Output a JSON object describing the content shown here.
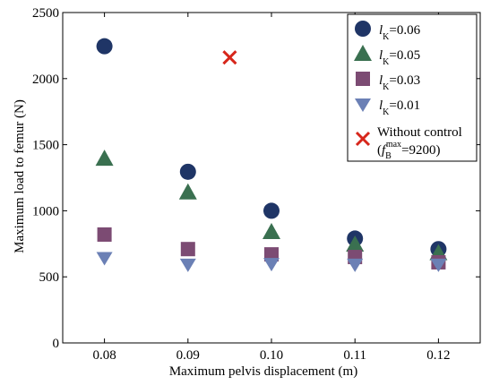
{
  "chart_data": {
    "type": "scatter",
    "title": "",
    "xlabel": "Maximum pelvis displacement (m)",
    "ylabel": "Maximum load to femur (N)",
    "xlim": [
      0.075,
      0.125
    ],
    "ylim": [
      0,
      2500
    ],
    "x_ticks": [
      "0.08",
      "0.09",
      "0.10",
      "0.11",
      "0.12"
    ],
    "x_tick_values": [
      0.08,
      0.09,
      0.1,
      0.11,
      0.12
    ],
    "y_ticks": [
      "0",
      "500",
      "1000",
      "1500",
      "2000",
      "2500"
    ],
    "y_tick_values": [
      0,
      500,
      1000,
      1500,
      2000,
      2500
    ],
    "grid": false,
    "legend_position": "top-right",
    "series": [
      {
        "name": "l_K=0.06",
        "label_main": "l",
        "label_sub": "K",
        "label_rest": "=0.06",
        "marker": "circle",
        "color": "#1f3566",
        "x": [
          0.08,
          0.09,
          0.1,
          0.11,
          0.12
        ],
        "y": [
          2245,
          1295,
          1000,
          790,
          710
        ]
      },
      {
        "name": "l_K=0.05",
        "label_main": "l",
        "label_sub": "K",
        "label_rest": "=0.05",
        "marker": "triangle-up",
        "color": "#3a7050",
        "x": [
          0.08,
          0.09,
          0.1,
          0.11,
          0.12
        ],
        "y": [
          1395,
          1140,
          840,
          745,
          680
        ]
      },
      {
        "name": "l_K=0.03",
        "label_main": "l",
        "label_sub": "K",
        "label_rest": "=0.03",
        "marker": "square",
        "color": "#7c4b73",
        "x": [
          0.08,
          0.09,
          0.1,
          0.11,
          0.12
        ],
        "y": [
          820,
          710,
          670,
          650,
          610
        ]
      },
      {
        "name": "l_K=0.01",
        "label_main": "l",
        "label_sub": "K",
        "label_rest": "=0.01",
        "marker": "triangle-down",
        "color": "#6b80b5",
        "x": [
          0.08,
          0.09,
          0.1,
          0.11,
          0.12
        ],
        "y": [
          640,
          590,
          595,
          590,
          590
        ]
      },
      {
        "name": "Without control (f_B^max=9200)",
        "label_line1": "Without control",
        "label_line2_open": "(",
        "label_line2_f": "f",
        "label_line2_sub": "B",
        "label_line2_sup": "max",
        "label_line2_rest": "=9200)",
        "marker": "x",
        "color": "#d7261b",
        "x": [
          0.095
        ],
        "y": [
          2160
        ]
      }
    ]
  }
}
